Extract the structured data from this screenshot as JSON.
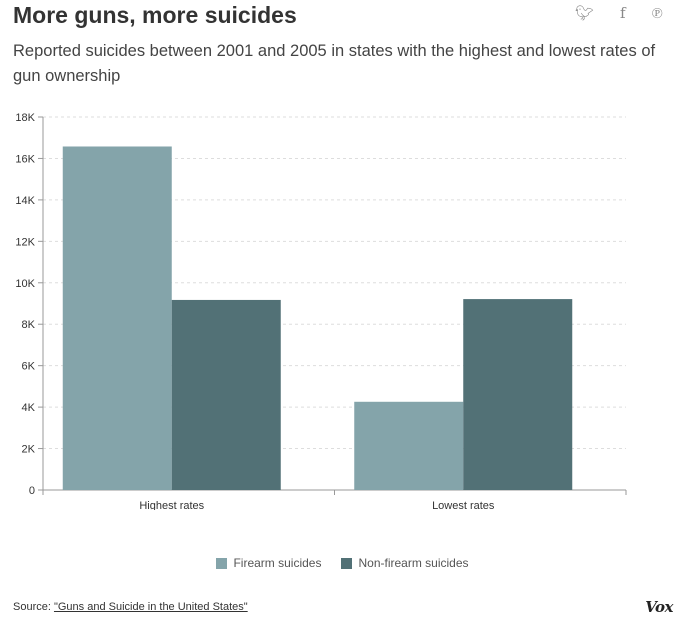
{
  "header": {
    "title": "More guns, more suicides",
    "subtitle": "Reported suicides between 2001 and 2005 in states with the highest and lowest rates of gun ownership"
  },
  "share": {
    "twitter": "twitter-icon",
    "facebook": "facebook-icon",
    "pinterest": "pinterest-icon"
  },
  "colors": {
    "firearm": "#84a4aa",
    "non_firearm": "#527176",
    "grid": "#dddddd",
    "axis": "#999999"
  },
  "chart_data": {
    "type": "bar",
    "categories": [
      "Highest rates",
      "Lowest rates"
    ],
    "series": [
      {
        "name": "Firearm suicides",
        "values": [
          16577,
          4257
        ]
      },
      {
        "name": "Non-firearm suicides",
        "values": [
          9172,
          9213
        ]
      }
    ],
    "ylim": [
      0,
      18000
    ],
    "yticks": [
      0,
      2000,
      4000,
      6000,
      8000,
      10000,
      12000,
      14000,
      16000,
      18000
    ],
    "ytick_labels": [
      "0",
      "2K",
      "4K",
      "6K",
      "8K",
      "10K",
      "12K",
      "14K",
      "16K",
      "18K"
    ],
    "grid": true,
    "legend": "bottom-center"
  },
  "legend": {
    "firearm_label": "Firearm suicides",
    "non_firearm_label": "Non-firearm suicides"
  },
  "footer": {
    "source_prefix": "Source: ",
    "source_link": "\"Guns and Suicide in the United States\"",
    "logo": "Vox"
  }
}
